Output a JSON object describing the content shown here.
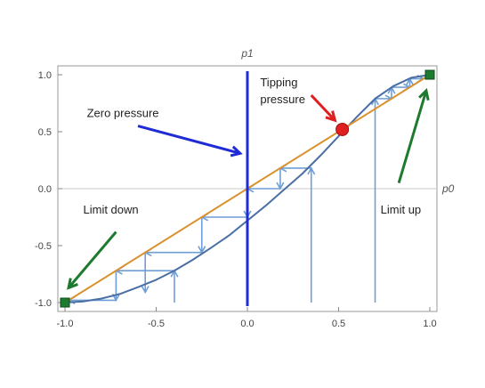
{
  "chart_data": {
    "type": "line",
    "title": "",
    "xlabel": "p0",
    "ylabel": "p1",
    "xlim": [
      -1.0,
      1.0
    ],
    "ylim": [
      -1.0,
      1.0
    ],
    "x_ticks": [
      "-1.0",
      "-0.5",
      "0.0",
      "0.5",
      "1.0"
    ],
    "y_ticks": [
      "-1.0",
      "-0.5",
      "0.0",
      "0.5",
      "1.0"
    ],
    "grid": false,
    "series": [
      {
        "name": "",
        "color": "#4a6fa5",
        "x": [
          -1.0,
          -0.9,
          -0.8,
          -0.7,
          -0.6,
          -0.5,
          -0.4,
          -0.3,
          -0.2,
          -0.1,
          0.0,
          0.1,
          0.2,
          0.3,
          0.4,
          0.5,
          0.6,
          0.7,
          0.8,
          0.9,
          1.0
        ],
        "y": [
          -1.0,
          -0.99,
          -0.965,
          -0.925,
          -0.865,
          -0.8,
          -0.72,
          -0.625,
          -0.52,
          -0.41,
          -0.28,
          -0.15,
          -0.01,
          0.13,
          0.29,
          0.46,
          0.63,
          0.79,
          0.9,
          0.975,
          1.0
        ]
      },
      {
        "name": "",
        "color": "#d9922e",
        "x": [
          -1.0,
          1.0
        ],
        "y": [
          -1.0,
          1.0
        ]
      }
    ],
    "cobweb_paths": [
      {
        "color": "#6e9ed6",
        "points": [
          [
            -0.4,
            -1.0
          ],
          [
            -0.4,
            -0.72
          ],
          [
            -0.72,
            -0.72
          ],
          [
            -0.72,
            -0.98
          ],
          [
            -0.98,
            -0.98
          ]
        ]
      },
      {
        "color": "#6e9ed6",
        "points": [
          [
            0.35,
            -1.0
          ],
          [
            0.35,
            0.18
          ],
          [
            0.18,
            0.18
          ],
          [
            0.18,
            0.0
          ],
          [
            0.0,
            0.0
          ],
          [
            0.0,
            -0.25
          ],
          [
            -0.25,
            -0.25
          ],
          [
            -0.25,
            -0.56
          ],
          [
            -0.56,
            -0.56
          ],
          [
            -0.56,
            -0.91
          ]
        ]
      },
      {
        "color": "#6e9ed6",
        "points": [
          [
            0.7,
            -1.0
          ],
          [
            0.7,
            0.79
          ],
          [
            0.79,
            0.79
          ],
          [
            0.79,
            0.89
          ],
          [
            0.89,
            0.89
          ],
          [
            0.89,
            0.965
          ],
          [
            0.965,
            0.965
          ]
        ]
      }
    ],
    "vertical_line": {
      "x": 0.0,
      "color": "#1f2bd6"
    },
    "markers": [
      {
        "name": "tipping-point",
        "x": 0.52,
        "y": 0.52,
        "color": "#e02020"
      },
      {
        "name": "limit-low",
        "x": -1.0,
        "y": -1.0,
        "color": "#1e7a2e"
      },
      {
        "name": "limit-high",
        "x": 1.0,
        "y": 1.0,
        "color": "#1e7a2e"
      }
    ],
    "annotations": [
      {
        "text": "Zero pressure",
        "x": -0.88,
        "y": 0.63
      },
      {
        "text": "Tipping",
        "x": 0.07,
        "y": 0.9
      },
      {
        "text": "pressure",
        "x": 0.07,
        "y": 0.75
      },
      {
        "text": "Limit down",
        "x": -0.9,
        "y": -0.22
      },
      {
        "text": "Limit up",
        "x": 0.73,
        "y": -0.22
      }
    ],
    "arrows": [
      {
        "color": "#1f2bd6",
        "from": [
          -0.6,
          0.55
        ],
        "to": [
          -0.04,
          0.31
        ]
      },
      {
        "color": "#e02020",
        "from": [
          0.35,
          0.82
        ],
        "to": [
          0.48,
          0.6
        ]
      },
      {
        "color": "#1e7a2e",
        "from": [
          -0.72,
          -0.38
        ],
        "to": [
          -0.98,
          -0.87
        ]
      },
      {
        "color": "#1e7a2e",
        "from": [
          0.83,
          0.05
        ],
        "to": [
          0.98,
          0.86
        ]
      }
    ]
  }
}
